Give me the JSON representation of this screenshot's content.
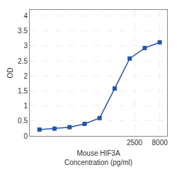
{
  "chart_data": {
    "type": "line",
    "x": [
      31.25,
      62.5,
      125,
      250,
      500,
      1000,
      2000,
      4000,
      8000
    ],
    "values": [
      0.212,
      0.243,
      0.291,
      0.402,
      0.596,
      1.58,
      2.58,
      2.93,
      3.12
    ],
    "color": "#2255aa",
    "marker": "square",
    "xlabel": "Mouse HIF3A\nConcentration (pg/ml)",
    "ylabel": "OD",
    "log": "x",
    "xlim": [
      19.952623149688797,
      11220.184543019635
    ],
    "xticks": [
      2500,
      8000
    ],
    "ylim": [
      0.0,
      4.2
    ],
    "yticks": [
      0,
      0.5,
      1,
      1.5,
      2,
      2.5,
      3,
      3.5,
      4
    ],
    "grid": true
  }
}
